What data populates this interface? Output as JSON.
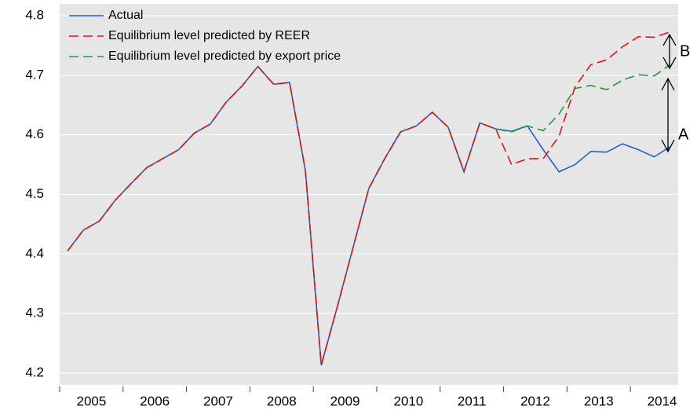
{
  "chart_data": {
    "type": "line",
    "categories": [
      null,
      "2005",
      null,
      null,
      null,
      "2006",
      null,
      null,
      null,
      "2007",
      null,
      null,
      null,
      "2008",
      null,
      null,
      null,
      "2009",
      null,
      null,
      null,
      "2010",
      null,
      null,
      null,
      "2011",
      null,
      null,
      null,
      "2012",
      null,
      null,
      null,
      "2013",
      null,
      null,
      null,
      "2014",
      null
    ],
    "series": [
      {
        "name": "Actual",
        "color": "#1f5fd6",
        "dash": false,
        "values": [
          4.405,
          4.44,
          4.455,
          4.49,
          4.518,
          4.545,
          4.56,
          4.575,
          4.603,
          4.618,
          4.655,
          4.682,
          4.715,
          4.685,
          4.688,
          4.54,
          4.213,
          4.31,
          4.41,
          4.51,
          4.56,
          4.605,
          4.615,
          4.638,
          4.613,
          4.538,
          4.62,
          4.61,
          4.606,
          4.615,
          4.575,
          4.538,
          4.55,
          4.572,
          4.571,
          4.585,
          4.575,
          4.563,
          4.58
        ]
      },
      {
        "name": "Equilibrium level predicted by export price",
        "color": "#1a9a3a",
        "dash": true,
        "values": [
          4.405,
          4.44,
          4.455,
          4.49,
          4.518,
          4.545,
          4.56,
          4.575,
          4.603,
          4.618,
          4.655,
          4.682,
          4.715,
          4.685,
          4.688,
          4.54,
          4.213,
          4.31,
          4.41,
          4.51,
          4.56,
          4.605,
          4.615,
          4.638,
          4.613,
          4.538,
          4.62,
          4.61,
          4.605,
          4.615,
          4.607,
          4.635,
          4.678,
          4.683,
          4.676,
          4.692,
          4.701,
          4.699,
          4.718
        ]
      },
      {
        "name": "Equilibrium level predicted by REER",
        "color": "#e0141a",
        "dash": true,
        "values": [
          4.405,
          4.44,
          4.455,
          4.49,
          4.518,
          4.545,
          4.56,
          4.575,
          4.603,
          4.618,
          4.655,
          4.682,
          4.715,
          4.685,
          4.688,
          4.54,
          4.213,
          4.31,
          4.41,
          4.51,
          4.56,
          4.605,
          4.615,
          4.638,
          4.613,
          4.538,
          4.62,
          4.61,
          4.55,
          4.56,
          4.56,
          4.598,
          4.68,
          4.718,
          4.726,
          4.748,
          4.765,
          4.764,
          4.773
        ]
      }
    ],
    "legend_order": [
      0,
      2,
      1
    ],
    "ylim": [
      4.18,
      4.82
    ],
    "yticks": [
      4.2,
      4.3,
      4.4,
      4.5,
      4.6,
      4.7,
      4.8
    ],
    "annotations": [
      "A",
      "B"
    ]
  }
}
